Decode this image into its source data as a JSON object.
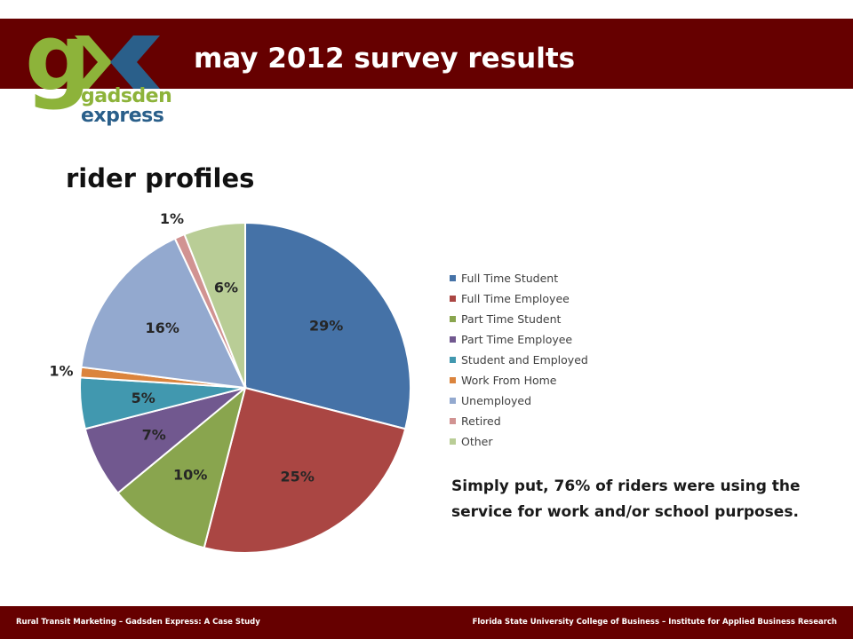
{
  "header": {
    "title": "may 2012 survey results",
    "band_color": "#660000"
  },
  "logo": {
    "letter": "g",
    "line1": "gadsden",
    "line2": "express",
    "green": "#8db33a",
    "blue": "#2a5f8a"
  },
  "section": {
    "title": "rider profiles"
  },
  "chart_data": {
    "type": "pie",
    "title": "",
    "categories": [
      "Full Time Student",
      "Full Time Employee",
      "Part Time Student",
      "Part Time Employee",
      "Student and Employed",
      "Work From Home",
      "Unemployed",
      "Retired",
      "Other"
    ],
    "values": [
      29,
      25,
      10,
      7,
      5,
      1,
      16,
      1,
      6
    ],
    "labels": [
      "29%",
      "25%",
      "10%",
      "7%",
      "5%",
      "1%",
      "16%",
      "1%",
      "6%"
    ],
    "colors": [
      "#4572a7",
      "#aa4643",
      "#89a54e",
      "#71588f",
      "#4198af",
      "#db843d",
      "#93a9cf",
      "#d19392",
      "#b9cd96"
    ],
    "legend_position": "right"
  },
  "summary": {
    "text": "Simply put, 76% of riders were using the service for work and/or school purposes."
  },
  "footer": {
    "left": "Rural Transit Marketing – Gadsden Express: A Case Study",
    "right": "Florida State University College of Business – Institute for Applied Business Research"
  }
}
